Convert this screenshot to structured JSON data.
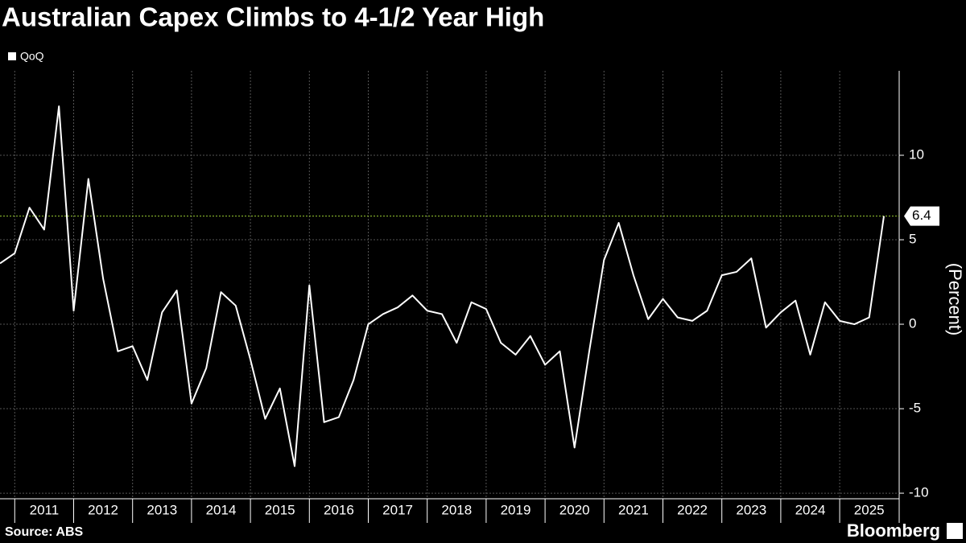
{
  "chart_data": {
    "type": "line",
    "title": "Australian Capex Climbs to 4-1/2 Year High",
    "y_label": "(Percent)",
    "source": "Source: ABS",
    "brand": "Bloomberg",
    "categories": [
      null,
      null,
      null,
      "2011",
      null,
      null,
      null,
      "2012",
      null,
      null,
      null,
      "2013",
      null,
      null,
      null,
      "2014",
      null,
      null,
      null,
      "2015",
      null,
      null,
      null,
      "2016",
      null,
      null,
      null,
      "2017",
      null,
      null,
      null,
      "2018",
      null,
      null,
      null,
      "2019",
      null,
      null,
      null,
      "2020",
      null,
      null,
      null,
      "2021",
      null,
      null,
      null,
      "2022",
      null,
      null,
      null,
      "2023",
      null,
      null,
      null,
      "2024",
      null,
      null,
      null,
      "2025",
      null
    ],
    "series": [
      {
        "name": "QoQ",
        "color": "#ffffff",
        "values": [
          3.6,
          4.2,
          6.9,
          5.6,
          12.9,
          0.8,
          8.6,
          2.7,
          -1.6,
          -1.3,
          -3.3,
          0.7,
          2.0,
          -4.7,
          -2.6,
          1.9,
          1.1,
          -2.1,
          -5.6,
          -3.8,
          -8.4,
          2.3,
          -5.8,
          -5.5,
          -3.3,
          0.0,
          0.6,
          1.0,
          1.7,
          0.8,
          0.6,
          -1.1,
          1.3,
          0.9,
          -1.1,
          -1.8,
          -0.7,
          -2.4,
          -1.6,
          -7.3,
          -1.6,
          3.8,
          6.0,
          2.9,
          0.3,
          1.5,
          0.4,
          0.2,
          0.8,
          2.9,
          3.1,
          3.9,
          -0.2,
          0.7,
          1.4,
          -1.8,
          1.3,
          0.2,
          0.0,
          0.4,
          6.4
        ]
      }
    ],
    "reference_line": {
      "value": 6.4,
      "color": "#9acd32"
    },
    "ylim": [
      -10.33,
      15
    ],
    "yticks": [
      10,
      5,
      0,
      -5,
      -10
    ],
    "grid": true
  }
}
